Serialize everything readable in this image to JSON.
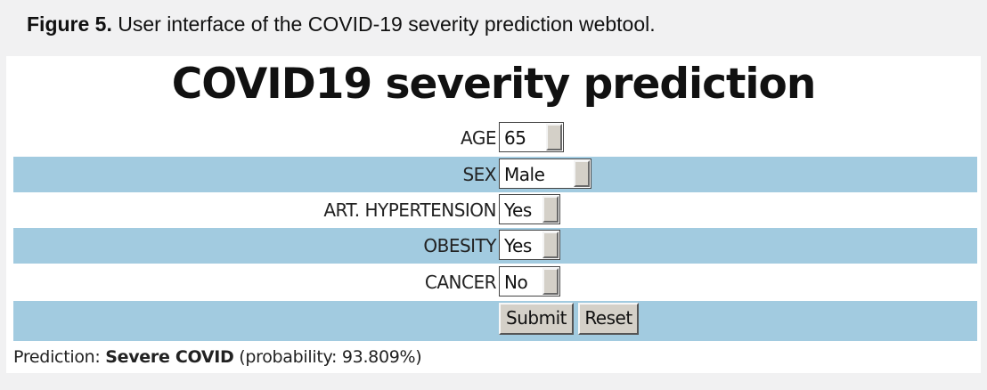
{
  "caption": {
    "prefix": "Figure 5.",
    "text": " User interface of the COVID-19 severity prediction webtool."
  },
  "app": {
    "title": "COVID19 severity prediction"
  },
  "form": {
    "fields": [
      {
        "label": "AGE",
        "value": "65"
      },
      {
        "label": "SEX",
        "value": "Male"
      },
      {
        "label": "ART. HYPERTENSION",
        "value": "Yes"
      },
      {
        "label": "OBESITY",
        "value": "Yes"
      },
      {
        "label": "CANCER",
        "value": "No"
      }
    ],
    "submit_label": "Submit",
    "reset_label": "Reset"
  },
  "result": {
    "prefix": "Prediction: ",
    "value": "Severe COVID",
    "suffix": " (probability: 93.809%)"
  },
  "colors": {
    "row_stripe": "#a2cbe0",
    "button_face": "#d4d0c8"
  }
}
